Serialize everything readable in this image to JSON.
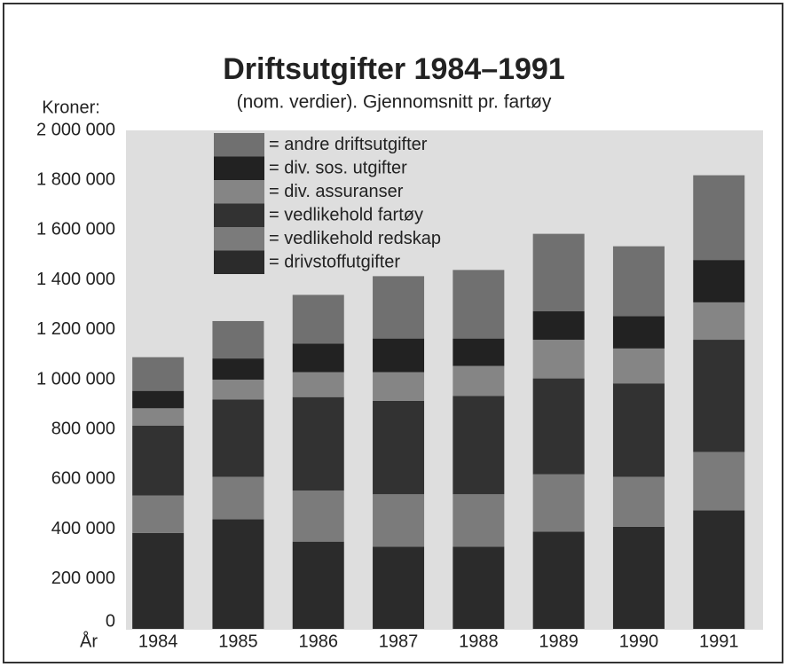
{
  "chart_data": {
    "type": "stacked_bar",
    "title": "Driftsutgifter 1984–1991",
    "subtitle": "(nom. verdier). Gjennomsnitt pr. fartøy",
    "y_label": "Kroner:",
    "x_label": "År",
    "categories": [
      "1984",
      "1985",
      "1986",
      "1987",
      "1988",
      "1989",
      "1990",
      "1991"
    ],
    "series": [
      {
        "name": "= drivstoffutgifter",
        "color": "#2b2b2b",
        "values": [
          385000,
          440000,
          350000,
          330000,
          330000,
          390000,
          410000,
          475000
        ]
      },
      {
        "name": "= vedlikehold redskap",
        "color": "#7b7b7b",
        "values": [
          150000,
          170000,
          205000,
          210000,
          210000,
          230000,
          200000,
          235000
        ]
      },
      {
        "name": "= vedlikehold fartøy",
        "color": "#323232",
        "values": [
          280000,
          310000,
          375000,
          375000,
          395000,
          385000,
          375000,
          450000
        ]
      },
      {
        "name": "= div. assuranser",
        "color": "#858585",
        "values": [
          70000,
          80000,
          100000,
          115000,
          120000,
          155000,
          140000,
          150000
        ]
      },
      {
        "name": "= div. sos. utgifter",
        "color": "#222222",
        "values": [
          70000,
          85000,
          115000,
          135000,
          110000,
          115000,
          130000,
          170000
        ]
      },
      {
        "name": "= andre driftsutgifter",
        "color": "#707070",
        "values": [
          135000,
          150000,
          195000,
          250000,
          275000,
          310000,
          280000,
          340000
        ]
      }
    ],
    "ylim": [
      0,
      2000000
    ],
    "yticks": [
      0,
      {
        "value": 200000,
        "label": "200 000"
      },
      {
        "value": 400000,
        "label": "400 000"
      },
      {
        "value": 600000,
        "label": "600 000"
      },
      {
        "value": 800000,
        "label": "800 000"
      },
      {
        "value": 1000000,
        "label": "1 000 000"
      },
      {
        "value": 1200000,
        "label": "1 200 000"
      },
      {
        "value": 1400000,
        "label": "1 400 000"
      },
      {
        "value": 1600000,
        "label": "1 600 000"
      },
      {
        "value": 1800000,
        "label": "1 800 000"
      },
      {
        "value": 2000000,
        "label": "2 000 000"
      }
    ],
    "grid": false
  }
}
